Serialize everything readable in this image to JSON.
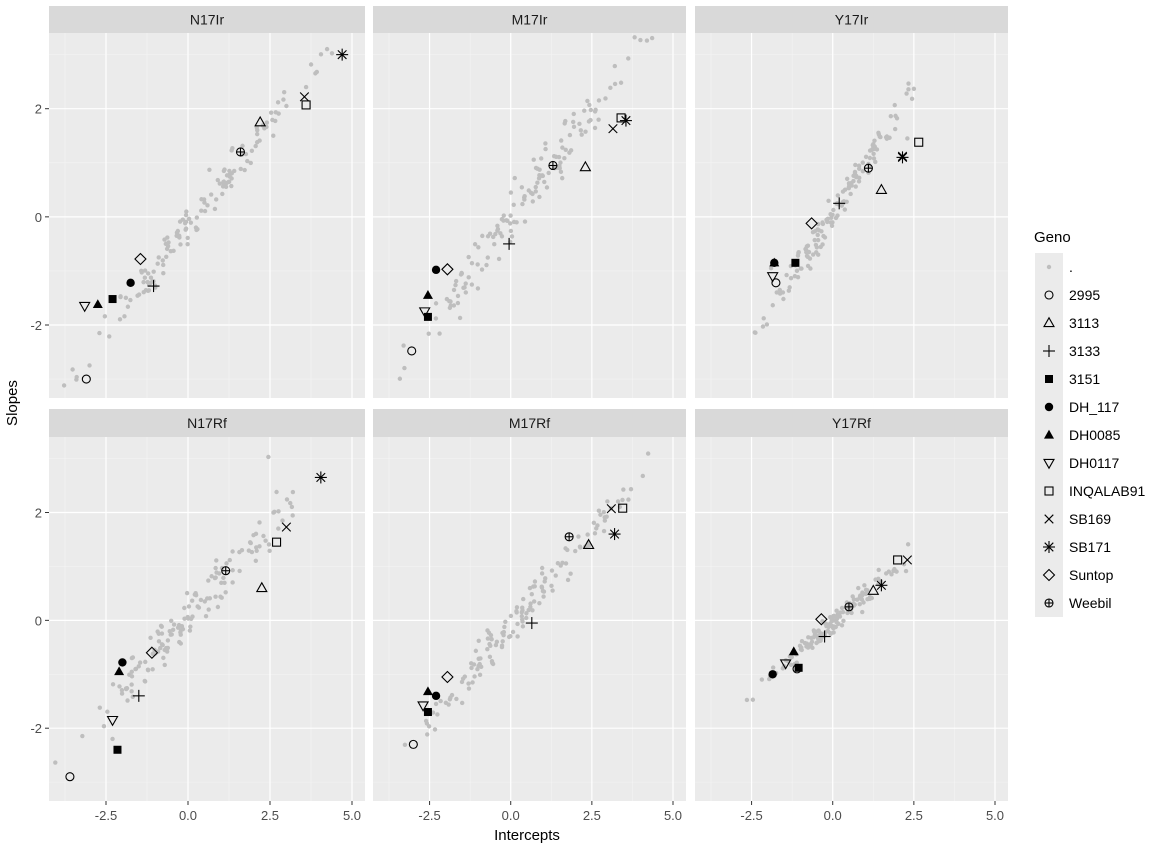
{
  "chart_data": {
    "type": "scatter",
    "xlabel": "Intercepts",
    "ylabel": "Slopes",
    "xlim": [
      -4.0,
      5.2
    ],
    "ylim": [
      -3.35,
      3.4
    ],
    "x_ticks": [
      -2.5,
      0.0,
      2.5,
      5.0
    ],
    "x_tick_labels": [
      "-2.5",
      "0.0",
      "2.5",
      "5.0"
    ],
    "y_ticks": [
      -2,
      0,
      2
    ],
    "y_tick_labels": [
      "-2",
      "0",
      "2"
    ],
    "grid": true,
    "legend": {
      "title": "Geno",
      "placement": "right",
      "entries": [
        {
          "label": ".",
          "shape": "dot",
          "color": "#bebebe"
        },
        {
          "label": "2995",
          "shape": "circle-open"
        },
        {
          "label": "3113",
          "shape": "triangle-open"
        },
        {
          "label": "3133",
          "shape": "plus"
        },
        {
          "label": "3151",
          "shape": "square-filled"
        },
        {
          "label": "DH_117",
          "shape": "circle-filled"
        },
        {
          "label": "DH0085",
          "shape": "triangle-filled"
        },
        {
          "label": "DH0117",
          "shape": "triangle-down-open"
        },
        {
          "label": "INQALAB91",
          "shape": "square-open"
        },
        {
          "label": "SB169",
          "shape": "cross"
        },
        {
          "label": "SB171",
          "shape": "asterisk"
        },
        {
          "label": "Suntop",
          "shape": "diamond-open"
        },
        {
          "label": "Weebil",
          "shape": "circle-plus"
        }
      ]
    },
    "panels": [
      {
        "title": "N17Ir",
        "row": 0,
        "col": 0,
        "background": {
          "center": [
            0.3,
            0.05
          ],
          "slope": 0.78,
          "spread_x": 1.65,
          "noise": 0.2,
          "n": 140,
          "seed": 11
        },
        "extra_gray": [
          [
            -2.7,
            -2.15
          ],
          [
            3.6,
            2.4
          ],
          [
            3.0,
            2.05
          ],
          [
            2.6,
            1.5
          ]
        ],
        "points": [
          {
            "geno": "2995",
            "x": -3.1,
            "y": -3.0
          },
          {
            "geno": "3113",
            "x": 2.2,
            "y": 1.75
          },
          {
            "geno": "3133",
            "x": -1.05,
            "y": -1.28
          },
          {
            "geno": "3151",
            "x": -2.3,
            "y": -1.52
          },
          {
            "geno": "DH_117",
            "x": -1.75,
            "y": -1.22
          },
          {
            "geno": "DH0085",
            "x": -2.75,
            "y": -1.62
          },
          {
            "geno": "DH0117",
            "x": -3.15,
            "y": -1.65
          },
          {
            "geno": "INQALAB91",
            "x": 3.6,
            "y": 2.07
          },
          {
            "geno": "SB169",
            "x": 3.55,
            "y": 2.22
          },
          {
            "geno": "SB171",
            "x": 4.7,
            "y": 3.0
          },
          {
            "geno": "Suntop",
            "x": -1.45,
            "y": -0.78
          },
          {
            "geno": "Weebil",
            "x": 1.6,
            "y": 1.2
          }
        ]
      },
      {
        "title": "M17Ir",
        "row": 0,
        "col": 1,
        "background": {
          "center": [
            0.2,
            0.1
          ],
          "slope": 0.8,
          "spread_x": 1.65,
          "noise": 0.22,
          "n": 140,
          "seed": 23
        },
        "extra_gray": [
          [
            3.4,
            2.48
          ],
          [
            2.6,
            1.95
          ],
          [
            -2.3,
            -1.6
          ]
        ],
        "points": [
          {
            "geno": "2995",
            "x": -3.05,
            "y": -2.48
          },
          {
            "geno": "3113",
            "x": 2.3,
            "y": 0.92
          },
          {
            "geno": "3133",
            "x": -0.05,
            "y": -0.5
          },
          {
            "geno": "3151",
            "x": -2.55,
            "y": -1.85
          },
          {
            "geno": "DH_117",
            "x": -2.3,
            "y": -0.98
          },
          {
            "geno": "DH0085",
            "x": -2.55,
            "y": -1.45
          },
          {
            "geno": "DH0117",
            "x": -2.65,
            "y": -1.75
          },
          {
            "geno": "INQALAB91",
            "x": 3.4,
            "y": 1.83
          },
          {
            "geno": "SB169",
            "x": 3.15,
            "y": 1.63
          },
          {
            "geno": "SB171",
            "x": 3.55,
            "y": 1.78
          },
          {
            "geno": "Suntop",
            "x": -1.95,
            "y": -0.97
          },
          {
            "geno": "Weebil",
            "x": 1.3,
            "y": 0.95
          }
        ]
      },
      {
        "title": "Y17Ir",
        "row": 0,
        "col": 2,
        "background": {
          "center": [
            0.1,
            0.15
          ],
          "slope": 0.95,
          "spread_x": 1.05,
          "noise": 0.15,
          "n": 140,
          "seed": 37
        },
        "extra_gray": [
          [
            2.3,
            1.45
          ],
          [
            -1.9,
            -0.95
          ]
        ],
        "points": [
          {
            "geno": "2995",
            "x": -1.75,
            "y": -1.22
          },
          {
            "geno": "3113",
            "x": 1.5,
            "y": 0.5
          },
          {
            "geno": "3133",
            "x": 0.2,
            "y": 0.25
          },
          {
            "geno": "3151",
            "x": -1.15,
            "y": -0.85
          },
          {
            "geno": "DH_117",
            "x": -1.8,
            "y": -0.85
          },
          {
            "geno": "DH0085",
            "x": -1.8,
            "y": -0.85
          },
          {
            "geno": "DH0117",
            "x": -1.85,
            "y": -1.1
          },
          {
            "geno": "INQALAB91",
            "x": 2.65,
            "y": 1.38
          },
          {
            "geno": "SB169",
            "x": 2.15,
            "y": 1.12
          },
          {
            "geno": "SB171",
            "x": 2.15,
            "y": 1.1
          },
          {
            "geno": "Suntop",
            "x": -0.65,
            "y": -0.12
          },
          {
            "geno": "Weebil",
            "x": 1.1,
            "y": 0.9
          }
        ]
      },
      {
        "title": "N17Rf",
        "row": 1,
        "col": 0,
        "background": {
          "center": [
            0.0,
            0.05
          ],
          "slope": 0.68,
          "spread_x": 1.6,
          "noise": 0.22,
          "n": 140,
          "seed": 51
        },
        "extra_gray": [
          [
            2.45,
            3.03
          ],
          [
            2.7,
            2.38
          ],
          [
            -2.3,
            -2.2
          ]
        ],
        "points": [
          {
            "geno": "2995",
            "x": -3.6,
            "y": -2.9
          },
          {
            "geno": "3113",
            "x": 2.25,
            "y": 0.6
          },
          {
            "geno": "3133",
            "x": -1.5,
            "y": -1.4
          },
          {
            "geno": "3151",
            "x": -2.15,
            "y": -2.4
          },
          {
            "geno": "DH_117",
            "x": -2.0,
            "y": -0.78
          },
          {
            "geno": "DH0085",
            "x": -2.1,
            "y": -0.95
          },
          {
            "geno": "DH0117",
            "x": -2.3,
            "y": -1.85
          },
          {
            "geno": "INQALAB91",
            "x": 2.7,
            "y": 1.45
          },
          {
            "geno": "SB169",
            "x": 3.0,
            "y": 1.73
          },
          {
            "geno": "SB171",
            "x": 4.05,
            "y": 2.65
          },
          {
            "geno": "Suntop",
            "x": -1.1,
            "y": -0.6
          },
          {
            "geno": "Weebil",
            "x": 1.15,
            "y": 0.92
          }
        ]
      },
      {
        "title": "M17Rf",
        "row": 1,
        "col": 1,
        "background": {
          "center": [
            0.2,
            0.0
          ],
          "slope": 0.7,
          "spread_x": 1.6,
          "noise": 0.17,
          "n": 140,
          "seed": 67
        },
        "extra_gray": [
          [
            2.9,
            1.85
          ],
          [
            -2.3,
            -1.55
          ]
        ],
        "points": [
          {
            "geno": "2995",
            "x": -3.0,
            "y": -2.3
          },
          {
            "geno": "3113",
            "x": 2.4,
            "y": 1.4
          },
          {
            "geno": "3133",
            "x": 0.65,
            "y": -0.05
          },
          {
            "geno": "3151",
            "x": -2.55,
            "y": -1.7
          },
          {
            "geno": "DH_117",
            "x": -2.3,
            "y": -1.4
          },
          {
            "geno": "DH0085",
            "x": -2.55,
            "y": -1.32
          },
          {
            "geno": "DH0117",
            "x": -2.7,
            "y": -1.58
          },
          {
            "geno": "INQALAB91",
            "x": 3.45,
            "y": 2.08
          },
          {
            "geno": "SB169",
            "x": 3.1,
            "y": 2.07
          },
          {
            "geno": "SB171",
            "x": 3.2,
            "y": 1.6
          },
          {
            "geno": "Suntop",
            "x": -1.95,
            "y": -1.05
          },
          {
            "geno": "Weebil",
            "x": 1.8,
            "y": 1.55
          }
        ]
      },
      {
        "title": "Y17Rf",
        "row": 1,
        "col": 2,
        "background": {
          "center": [
            0.0,
            -0.05
          ],
          "slope": 0.52,
          "spread_x": 0.95,
          "noise": 0.1,
          "n": 140,
          "seed": 83
        },
        "extra_gray": [
          [
            -1.5,
            -0.85
          ],
          [
            1.9,
            0.95
          ]
        ],
        "points": [
          {
            "geno": "2995",
            "x": -1.1,
            "y": -0.9
          },
          {
            "geno": "3113",
            "x": 1.25,
            "y": 0.55
          },
          {
            "geno": "3133",
            "x": -0.25,
            "y": -0.3
          },
          {
            "geno": "3151",
            "x": -1.05,
            "y": -0.88
          },
          {
            "geno": "DH_117",
            "x": -1.85,
            "y": -1.0
          },
          {
            "geno": "DH0085",
            "x": -1.2,
            "y": -0.58
          },
          {
            "geno": "DH0117",
            "x": -1.45,
            "y": -0.8
          },
          {
            "geno": "INQALAB91",
            "x": 2.0,
            "y": 1.12
          },
          {
            "geno": "SB169",
            "x": 2.3,
            "y": 1.12
          },
          {
            "geno": "SB171",
            "x": 1.5,
            "y": 0.65
          },
          {
            "geno": "Suntop",
            "x": -0.35,
            "y": 0.02
          },
          {
            "geno": "Weebil",
            "x": 0.5,
            "y": 0.25
          }
        ]
      }
    ]
  }
}
